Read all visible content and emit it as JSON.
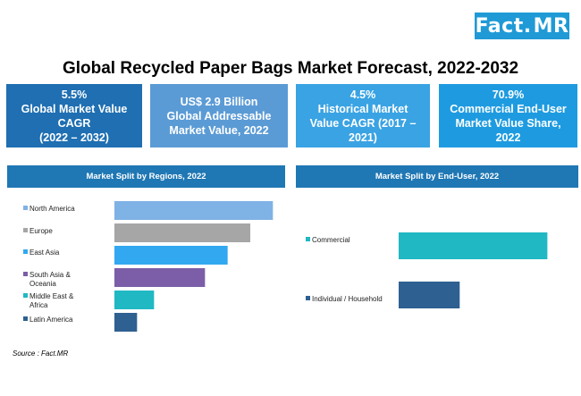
{
  "logo": {
    "fact": "Fact",
    "dot": ".",
    "mr": "MR"
  },
  "title": "Global Recycled Paper Bags Market Forecast, 2022-2032",
  "kpis": [
    {
      "line1": "5.5%",
      "line2": "Global Market Value",
      "line3": "CAGR",
      "line4": "(2022 – 2032)",
      "color": "#1f6fb2"
    },
    {
      "line1": "US$ 2.9 Billion",
      "line2": "Global Addressable",
      "line3": "Market Value, 2022",
      "line4": "",
      "color": "#5b9bd5"
    },
    {
      "line1": "4.5%",
      "line2": "Historical Market",
      "line3": "Value CAGR (2017 –",
      "line4": "2021)",
      "color": "#3aa3e3"
    },
    {
      "line1": "70.9%",
      "line2": "Commercial End-User",
      "line3": "Market Value Share,",
      "line4": "2022",
      "color": "#1e9be0"
    }
  ],
  "chart_data": [
    {
      "type": "bar",
      "orientation": "horizontal",
      "title": "Market Split by Regions, 2022",
      "categories": [
        "North America",
        "Europe",
        "East Asia",
        "South Asia & Oceania",
        "Middle East & Africa",
        "Latin America"
      ],
      "values": [
        28,
        24,
        20,
        16,
        7,
        4
      ],
      "colors": [
        "#7fb2e5",
        "#a6a6a6",
        "#31a8f0",
        "#7b5ea7",
        "#1fb8c3",
        "#2e6091"
      ],
      "xlim": [
        0,
        30
      ],
      "grid": false,
      "legend": "left"
    },
    {
      "type": "bar",
      "orientation": "horizontal",
      "title": "Market Split by End-User, 2022",
      "categories": [
        "Commercial",
        "Individual / Household"
      ],
      "values": [
        70.9,
        29.1
      ],
      "colors": [
        "#1fb8c3",
        "#2e6091"
      ],
      "xlim": [
        0,
        75
      ],
      "grid": false,
      "legend": "left"
    }
  ],
  "source": "Source : Fact.MR"
}
